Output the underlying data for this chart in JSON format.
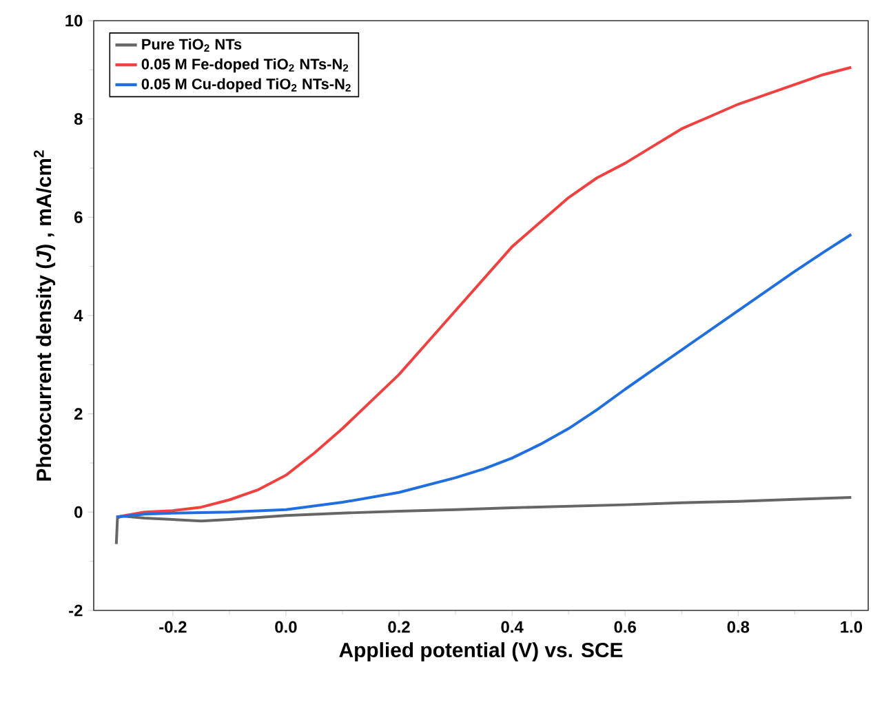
{
  "chart_data": {
    "type": "line",
    "xlabel": "Applied potential (V) vs. SCE",
    "ylabel": "Photocurrent density (*J*) , mA/cm$^{2}$",
    "xlim": [
      -0.34,
      1.03
    ],
    "ylim": [
      -2,
      10
    ],
    "xticks": [
      -0.2,
      {
        "value": 0,
        "label": "0.0"
      },
      0.2,
      0.4,
      0.6,
      0.8,
      {
        "value": 1,
        "label": "1.0"
      }
    ],
    "yticks": [
      -2,
      0,
      2,
      4,
      6,
      8,
      10
    ],
    "legend": "top left",
    "grid": false,
    "series": [
      {
        "name": "Pure TiO$_{2}$ NTs",
        "color": "#666666",
        "x": [
          -0.3,
          -0.298,
          -0.29,
          -0.25,
          -0.2,
          -0.15,
          -0.1,
          -0.05,
          0,
          0.1,
          0.2,
          0.3,
          0.4,
          0.5,
          0.6,
          0.7,
          0.8,
          0.9,
          1.0
        ],
        "values": [
          -0.65,
          -0.12,
          -0.08,
          -0.12,
          -0.15,
          -0.18,
          -0.15,
          -0.11,
          -0.07,
          -0.02,
          0.02,
          0.05,
          0.09,
          0.12,
          0.15,
          0.19,
          0.22,
          0.26,
          0.3
        ]
      },
      {
        "name": "0.05 M Fe-doped TiO$_{2}$ NTs-N$_{2}$",
        "color": "#f04040",
        "x": [
          -0.3,
          -0.25,
          -0.2,
          -0.15,
          -0.1,
          -0.05,
          0,
          0.05,
          0.1,
          0.15,
          0.2,
          0.25,
          0.3,
          0.35,
          0.4,
          0.45,
          0.5,
          0.55,
          0.6,
          0.65,
          0.7,
          0.75,
          0.8,
          0.85,
          0.9,
          0.95,
          1.0
        ],
        "values": [
          -0.1,
          0.0,
          0.03,
          0.1,
          0.25,
          0.45,
          0.75,
          1.2,
          1.7,
          2.25,
          2.8,
          3.45,
          4.1,
          4.75,
          5.4,
          5.9,
          6.4,
          6.8,
          7.1,
          7.45,
          7.8,
          8.05,
          8.3,
          8.5,
          8.7,
          8.9,
          9.05
        ]
      },
      {
        "name": "0.05 M Cu-doped TiO$_{2}$ NTs-N$_{2}$",
        "color": "#1f6fe0",
        "x": [
          -0.3,
          -0.25,
          -0.2,
          -0.1,
          0,
          0.1,
          0.2,
          0.3,
          0.35,
          0.4,
          0.45,
          0.5,
          0.55,
          0.6,
          0.65,
          0.7,
          0.75,
          0.8,
          0.85,
          0.9,
          0.95,
          1.0
        ],
        "values": [
          -0.1,
          -0.04,
          -0.02,
          0.0,
          0.05,
          0.2,
          0.4,
          0.7,
          0.88,
          1.1,
          1.38,
          1.7,
          2.08,
          2.5,
          2.9,
          3.3,
          3.7,
          4.1,
          4.5,
          4.9,
          5.28,
          5.65
        ]
      }
    ]
  }
}
